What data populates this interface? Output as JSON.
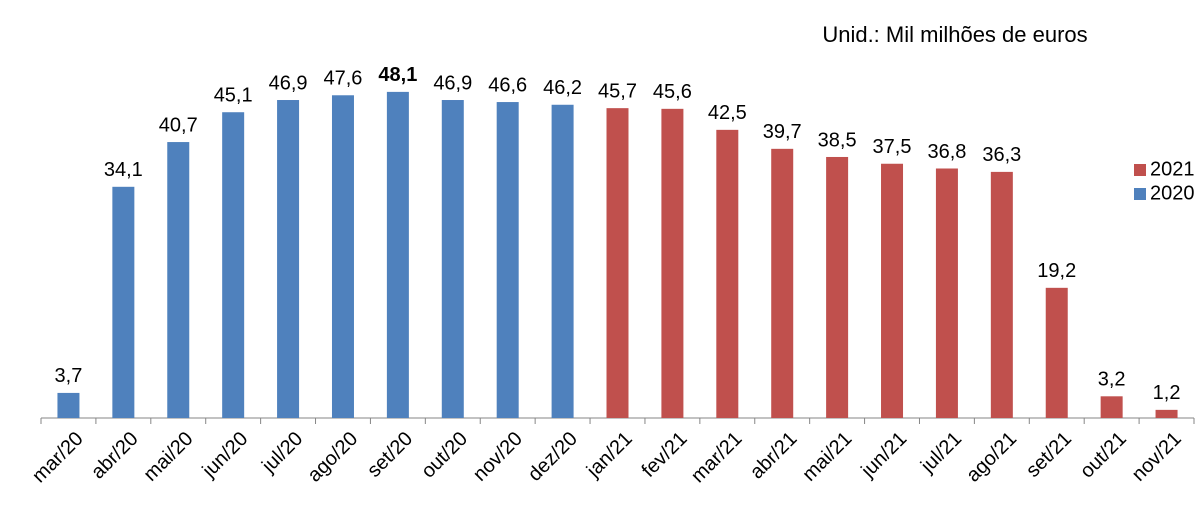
{
  "chart_data": {
    "type": "bar",
    "subtitle": "Unid.: Mil milhões de euros",
    "categories": [
      "mar/20",
      "abr/20",
      "mai/20",
      "jun/20",
      "jul/20",
      "ago/20",
      "set/20",
      "out/20",
      "nov/20",
      "dez/20",
      "jan/21",
      "fev/21",
      "mar/21",
      "abr/21",
      "mai/21",
      "jun/21",
      "jul/21",
      "ago/21",
      "set/21",
      "out/21",
      "nov/21"
    ],
    "series": [
      {
        "name": "2021",
        "color": "#c0504d",
        "values": [
          null,
          null,
          null,
          null,
          null,
          null,
          null,
          null,
          null,
          null,
          45.7,
          45.6,
          42.5,
          39.7,
          38.5,
          37.5,
          36.8,
          36.3,
          19.2,
          3.2,
          1.2
        ],
        "value_labels": [
          null,
          null,
          null,
          null,
          null,
          null,
          null,
          null,
          null,
          null,
          "45,7",
          "45,6",
          "42,5",
          "39,7",
          "38,5",
          "37,5",
          "36,8",
          "36,3",
          "19,2",
          "3,2",
          "1,2"
        ]
      },
      {
        "name": "2020",
        "color": "#4f81bd",
        "values": [
          3.7,
          34.1,
          40.7,
          45.1,
          46.9,
          47.6,
          48.1,
          46.9,
          46.6,
          46.2,
          null,
          null,
          null,
          null,
          null,
          null,
          null,
          null,
          null,
          null,
          null
        ],
        "value_labels": [
          "3,7",
          "34,1",
          "40,7",
          "45,1",
          "46,9",
          "47,6",
          "48,1",
          "46,9",
          "46,6",
          "46,2",
          null,
          null,
          null,
          null,
          null,
          null,
          null,
          null,
          null,
          null,
          null
        ]
      }
    ],
    "ylim": [
      0,
      50
    ],
    "highlight_index": 6,
    "legend": "right"
  }
}
